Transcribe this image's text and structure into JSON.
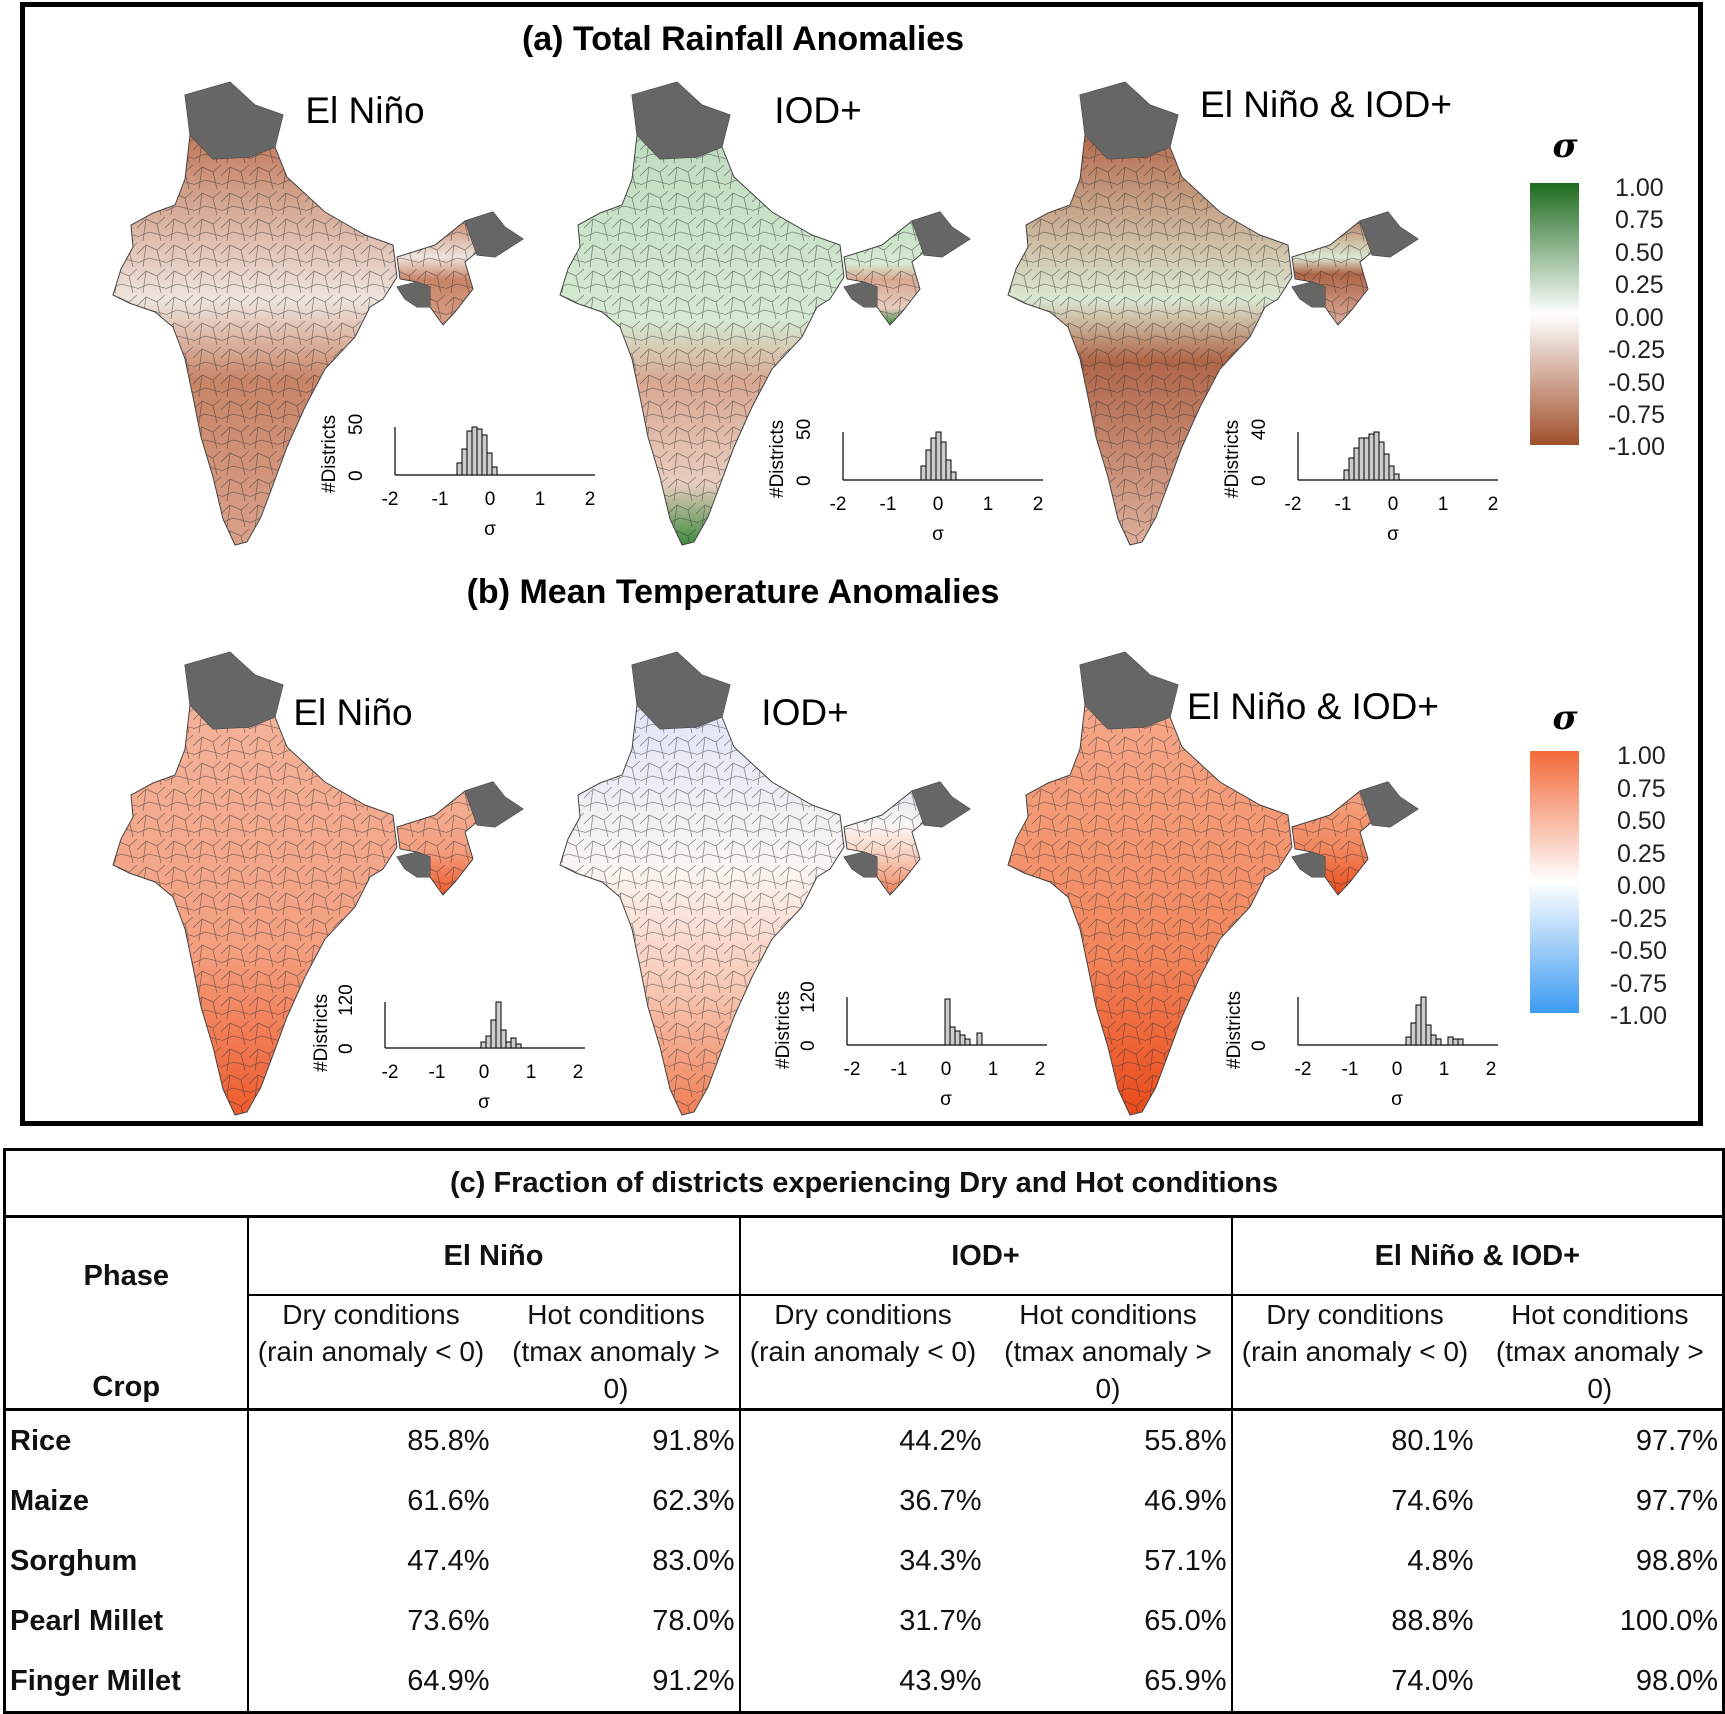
{
  "panel_a": {
    "title": "(a) Total Rainfall Anomalies",
    "maps": [
      {
        "label": "El Niño",
        "hist_ylabel": "#Districts",
        "hist_yticks": [
          "0",
          "50"
        ],
        "hist_xticks": [
          "-2",
          "-1",
          "0",
          "1",
          "2"
        ],
        "hist_xlabel": "σ"
      },
      {
        "label": "IOD+",
        "hist_ylabel": "#Districts",
        "hist_yticks": [
          "0",
          "50"
        ],
        "hist_xticks": [
          "-2",
          "-1",
          "0",
          "1",
          "2"
        ],
        "hist_xlabel": "σ"
      },
      {
        "label": "El Niño & IOD+",
        "hist_ylabel": "#Districts",
        "hist_yticks": [
          "0",
          "40"
        ],
        "hist_xticks": [
          "-2",
          "-1",
          "0",
          "1",
          "2"
        ],
        "hist_xlabel": "σ"
      }
    ],
    "colorbar": {
      "symbol": "σ",
      "ticks": [
        "1.00",
        "0.75",
        "0.50",
        "0.25",
        "0.00",
        "-0.25",
        "-0.50",
        "-0.75",
        "-1.00"
      ],
      "colors": {
        "top": "#1e6b1e",
        "mid": "#ffffff",
        "bottom": "#a0502a"
      }
    }
  },
  "panel_b": {
    "title": "(b) Mean Temperature Anomalies",
    "maps": [
      {
        "label": "El Niño",
        "hist_ylabel": "#Districts",
        "hist_yticks": [
          "0",
          "120"
        ],
        "hist_xticks": [
          "-2",
          "-1",
          "0",
          "1",
          "2"
        ],
        "hist_xlabel": "σ"
      },
      {
        "label": "IOD+",
        "hist_ylabel": "#Districts",
        "hist_yticks": [
          "0",
          "120"
        ],
        "hist_xticks": [
          "-2",
          "-1",
          "0",
          "1",
          "2"
        ],
        "hist_xlabel": "σ"
      },
      {
        "label": "El Niño & IOD+",
        "hist_ylabel": "#Districts",
        "hist_yticks": [
          "0"
        ],
        "hist_xticks": [
          "-2",
          "-1",
          "0",
          "1",
          "2"
        ],
        "hist_xlabel": "σ"
      }
    ],
    "colorbar": {
      "symbol": "σ",
      "ticks": [
        "1.00",
        "0.75",
        "0.50",
        "0.25",
        "0.00",
        "-0.25",
        "-0.50",
        "-0.75",
        "-1.00"
      ],
      "colors": {
        "top": "#f26a3a",
        "mid": "#ffffff",
        "bottom": "#3d9bf2"
      }
    }
  },
  "table": {
    "caption": "(c) Fraction of districts experiencing Dry and Hot conditions",
    "phase_label": "Phase",
    "crop_label": "Crop",
    "phases": [
      "El Niño",
      "IOD+",
      "El Niño & IOD+"
    ],
    "sub_headers": [
      "Dry conditions (rain anomaly < 0)",
      "Hot conditions (tmax anomaly > 0)"
    ],
    "rows": [
      {
        "crop": "Rice",
        "values": [
          "85.8%",
          "91.8%",
          "44.2%",
          "55.8%",
          "80.1%",
          "97.7%"
        ]
      },
      {
        "crop": "Maize",
        "values": [
          "61.6%",
          "62.3%",
          "36.7%",
          "46.9%",
          "74.6%",
          "97.7%"
        ]
      },
      {
        "crop": "Sorghum",
        "values": [
          "47.4%",
          "83.0%",
          "34.3%",
          "57.1%",
          "4.8%",
          "98.8%"
        ]
      },
      {
        "crop": "Pearl Millet",
        "values": [
          "73.6%",
          "78.0%",
          "31.7%",
          "65.0%",
          "88.8%",
          "100.0%"
        ]
      },
      {
        "crop": "Finger Millet",
        "values": [
          "64.9%",
          "91.2%",
          "43.9%",
          "65.9%",
          "74.0%",
          "98.0%"
        ]
      }
    ]
  }
}
